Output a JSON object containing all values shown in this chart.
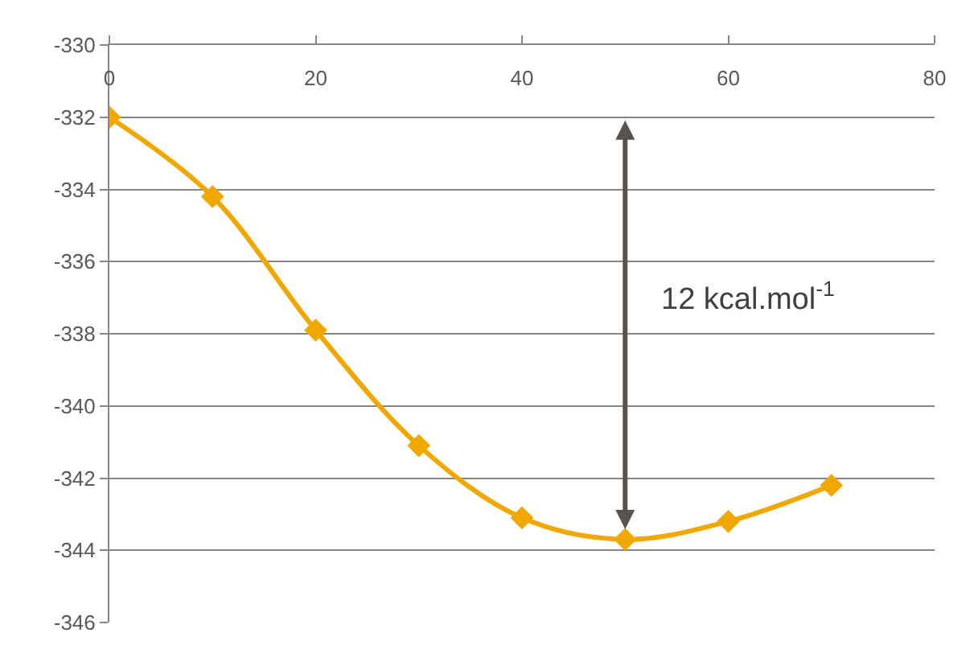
{
  "chart_data": {
    "type": "line",
    "x": [
      0,
      10,
      20,
      30,
      40,
      50,
      60,
      70
    ],
    "series": [
      {
        "color": "#f0a800",
        "values": [
          -332.0,
          -334.2,
          -337.9,
          -341.1,
          -343.1,
          -343.7,
          -343.2,
          -342.2
        ]
      }
    ],
    "xlim": [
      0,
      80
    ],
    "xticks": [
      0,
      20,
      40,
      60,
      80
    ],
    "ylim": [
      -346,
      -330
    ],
    "yticks": [
      -346,
      -344,
      -342,
      -340,
      -338,
      -336,
      -334,
      -332,
      -330
    ],
    "grid": "y",
    "marker": "diamond",
    "line_style": "solid",
    "annotations": [
      "12 kcal.mol$^{-1}$"
    ]
  }
}
